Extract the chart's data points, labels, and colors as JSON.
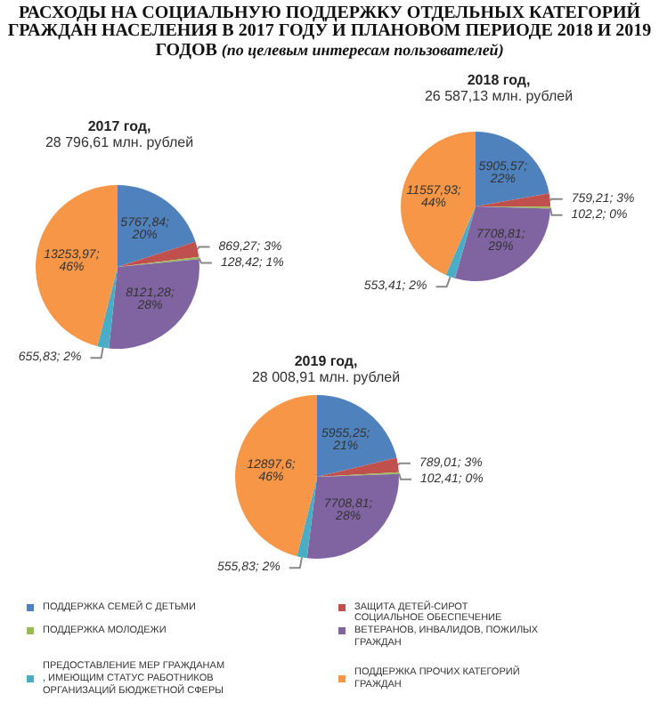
{
  "chart_data": [
    {
      "type": "pie",
      "title": "2017 год,",
      "subtitle": "28 796,61 млн. рублей",
      "annotations": [
        "РАСХОДЫ НА СОЦИАЛЬНУЮ ПОДДЕРЖКУ ОТДЕЛЬНЫХ КАТЕГОРИЙ ГРАЖДАН НАСЕЛЕНИЯ В 2017 ГОДУ И ПЛАНОВОМ ПЕРИОДЕ 2018 И 2019 ГОДОВ",
        "(по целевым интересам пользователей)"
      ],
      "categories": [
        null,
        null,
        null,
        null,
        null,
        null
      ],
      "values": [
        5767.84,
        869.27,
        128.42,
        8121.28,
        655.83,
        13253.97
      ],
      "value_labels": [
        "5767,84; 20%",
        "869,27; 3%",
        "128,42; 1%",
        "8121,28; 28%",
        "655,83; 2%",
        "13253,97; 46%"
      ],
      "colors": [
        "#4f81bd",
        "#c0504d",
        "#9bbb59",
        "#8064a2",
        "#4bacc6",
        "#f79646"
      ]
    },
    {
      "type": "pie",
      "title": "2018 год,",
      "subtitle": "26 587,13 млн. рублей",
      "categories": [
        null,
        null,
        null,
        null,
        null,
        null
      ],
      "values": [
        5905.57,
        759.21,
        102.2,
        7708.81,
        553.41,
        11557.93
      ],
      "value_labels": [
        "5905,57; 22%",
        "759,21; 3%",
        "102,2; 0%",
        "7708,81; 29%",
        "553,41; 2%",
        "11557,93; 44%"
      ],
      "colors": [
        "#4f81bd",
        "#c0504d",
        "#9bbb59",
        "#8064a2",
        "#4bacc6",
        "#f79646"
      ]
    },
    {
      "type": "pie",
      "title": "2019 год,",
      "subtitle": "28 008,91 млн. рублей",
      "legend": "bottom",
      "categories": [
        "ПОДДЕРЖКА СЕМЕЙ С ДЕТЬМИ",
        "ЗАЩИТА ДЕТЕЙ-СИРОТ",
        "ПОДДЕРЖКА МОЛОДЕЖИ",
        "СОЦИАЛЬНОЕ ОБЕСПЕЧЕНИЕ ВЕТЕРАНОВ, ИНВАЛИДОВ, ПОЖИЛЫХ ГРАЖДАН",
        "ПРЕДОСТАВЛЕНИЕ МЕР ГРАЖДАНАМ, ИМЕЮЩИМ СТАТУС РАБОТНИКОВ ОРГАНИЗАЦИЙ БЮДЖЕТНОЙ СФЕРЫ",
        "ПОДДЕРЖКА ПРОЧИХ КАТЕГОРИЙ ГРАЖДАН"
      ],
      "values": [
        5955.25,
        789.01,
        102.41,
        7708.81,
        555.83,
        12897.6
      ],
      "value_labels": [
        "5955,25; 21%",
        "789,01; 3%",
        "102,41; 0%",
        "7708,81; 28%",
        "555,83; 2%",
        "12897,6; 46%"
      ],
      "colors": [
        "#4f81bd",
        "#c0504d",
        "#9bbb59",
        "#8064a2",
        "#4bacc6",
        "#f79646"
      ]
    }
  ]
}
